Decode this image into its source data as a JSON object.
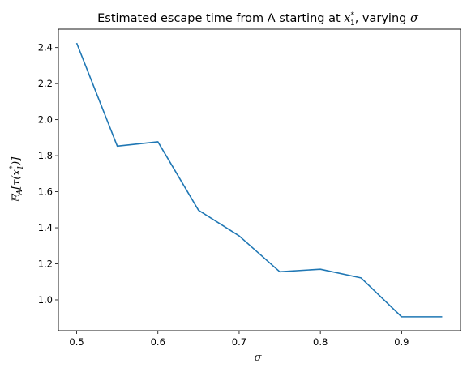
{
  "chart_data": {
    "type": "line",
    "title": {
      "prefix": "Estimated escape time from A starting at ",
      "var": "x",
      "sup": "*",
      "sub": "1",
      "suffix": ", varying ",
      "sigma": "σ"
    },
    "xlabel": "σ",
    "ylabel": {
      "E": "𝔼",
      "sub": "A",
      "open": "[τ(",
      "x": "x",
      "sup": "*",
      "xsub": "1",
      "close": ")]"
    },
    "xlim": [
      0.4775,
      0.9725
    ],
    "ylim": [
      0.829,
      2.502
    ],
    "xticks": [
      0.5,
      0.6,
      0.7,
      0.8,
      0.9
    ],
    "xtick_labels": [
      "0.5",
      "0.6",
      "0.7",
      "0.8",
      "0.9"
    ],
    "yticks": [
      1.0,
      1.2,
      1.4,
      1.6,
      1.8,
      2.0,
      2.2,
      2.4
    ],
    "ytick_labels": [
      "1.0",
      "1.2",
      "1.4",
      "1.6",
      "1.8",
      "2.0",
      "2.2",
      "2.4"
    ],
    "series": [
      {
        "color": "#1f77b4",
        "x": [
          0.5,
          0.55,
          0.6,
          0.65,
          0.7,
          0.75,
          0.8,
          0.85,
          0.9,
          0.95
        ],
        "y": [
          2.425,
          1.853,
          1.877,
          1.497,
          1.355,
          1.156,
          1.17,
          1.122,
          0.906,
          0.906
        ]
      }
    ],
    "grid": false,
    "legend": "none"
  }
}
